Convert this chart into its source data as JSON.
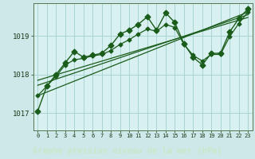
{
  "title": "Graphe pression niveau de la mer (hPa)",
  "bg_color": "#cce8e8",
  "plot_bg_color": "#d8f0f0",
  "label_bg_color": "#5a8a6a",
  "grid_color": "#aad4d4",
  "line_color": "#1a5c1a",
  "text_color": "#1a3a1a",
  "label_text_color": "#000000",
  "x_labels": [
    "0",
    "1",
    "2",
    "3",
    "4",
    "5",
    "6",
    "7",
    "8",
    "9",
    "10",
    "11",
    "12",
    "13",
    "14",
    "15",
    "16",
    "17",
    "18",
    "19",
    "20",
    "21",
    "22",
    "23"
  ],
  "y_ticks": [
    1017,
    1018,
    1019
  ],
  "ylim": [
    1016.55,
    1019.85
  ],
  "xlim": [
    -0.5,
    23.5
  ],
  "series1": [
    1017.05,
    1017.7,
    1018.0,
    1018.3,
    1018.6,
    1018.45,
    1018.5,
    1018.55,
    1018.75,
    1019.05,
    1019.15,
    1019.3,
    1019.5,
    1019.15,
    1019.6,
    1019.35,
    1018.8,
    1018.45,
    1018.25,
    1018.55,
    1018.55,
    1019.1,
    1019.45,
    1019.7
  ],
  "trend1_x": [
    0,
    23
  ],
  "trend1_y": [
    1017.45,
    1019.62
  ],
  "trend2_x": [
    0,
    23
  ],
  "trend2_y": [
    1017.72,
    1019.55
  ],
  "trend3_x": [
    0,
    23
  ],
  "trend3_y": [
    1017.85,
    1019.48
  ],
  "smooth_series_x": [
    0,
    1,
    2,
    3,
    4,
    5,
    6,
    7,
    8,
    9,
    10,
    11,
    12,
    13,
    14,
    15,
    16,
    17,
    18,
    19,
    20,
    21,
    22,
    23
  ],
  "smooth_series_y": [
    1017.45,
    1017.7,
    1017.95,
    1018.25,
    1018.38,
    1018.42,
    1018.48,
    1018.52,
    1018.62,
    1018.78,
    1018.9,
    1019.05,
    1019.18,
    1019.12,
    1019.3,
    1019.22,
    1018.78,
    1018.5,
    1018.35,
    1018.52,
    1018.52,
    1018.98,
    1019.32,
    1019.62
  ]
}
